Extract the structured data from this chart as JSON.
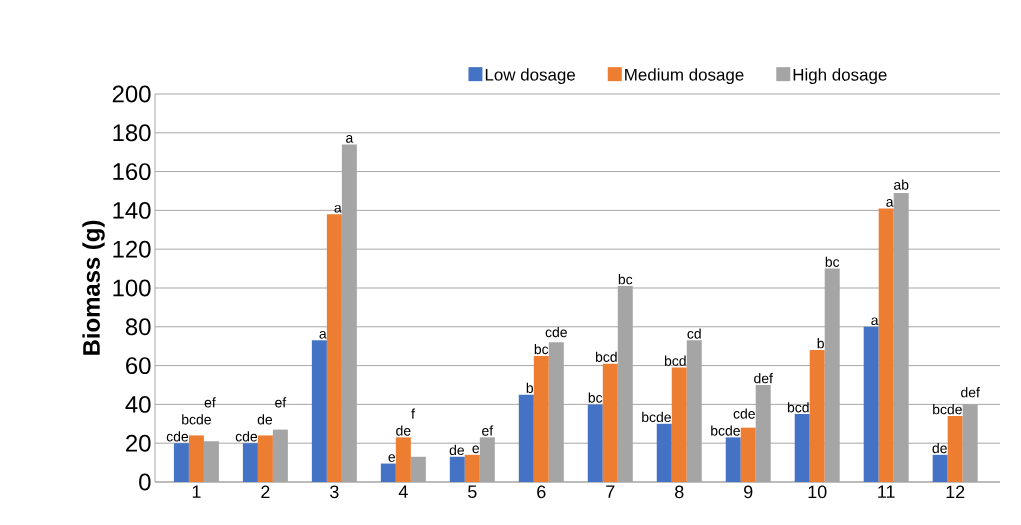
{
  "chart_data": {
    "type": "bar",
    "ylabel": "Biomass (g)",
    "categories": [
      "1",
      "2",
      "3",
      "4",
      "5",
      "6",
      "7",
      "8",
      "9",
      "10",
      "11",
      "12"
    ],
    "series": [
      {
        "name": "Low dosage",
        "color": "#4472c4",
        "values": [
          20,
          20,
          73,
          9.5,
          13,
          45,
          40,
          30,
          23,
          35,
          80,
          14
        ],
        "value_labels": [
          "cde",
          "cde",
          "a",
          "e",
          "de",
          "b",
          "bc",
          "bcde",
          "bcde",
          "bcd",
          "a",
          "de"
        ]
      },
      {
        "name": "Medium dosage",
        "color": "#ed7d31",
        "values": [
          24,
          24,
          138,
          23,
          14,
          65,
          61,
          59,
          28,
          68,
          141,
          34
        ],
        "value_labels": [
          "bcde",
          "de",
          "a",
          "de",
          "e",
          "bc",
          "bcd",
          "bcd",
          "cde",
          "b",
          "a",
          "bcde"
        ]
      },
      {
        "name": "High dosage",
        "color": "#a5a5a5",
        "values": [
          21,
          27,
          174,
          13,
          23,
          72,
          101,
          73,
          50,
          110,
          149,
          40
        ],
        "value_labels": [
          "ef",
          "ef",
          "a",
          "f",
          "ef",
          "cde",
          "bc",
          "cd",
          "def",
          "bc",
          "ab",
          "def"
        ]
      }
    ],
    "ylim": [
      0,
      200
    ],
    "yticks": [
      0,
      20,
      40,
      60,
      80,
      100,
      120,
      140,
      160,
      180,
      200
    ],
    "grid": "y",
    "legend": "top"
  }
}
